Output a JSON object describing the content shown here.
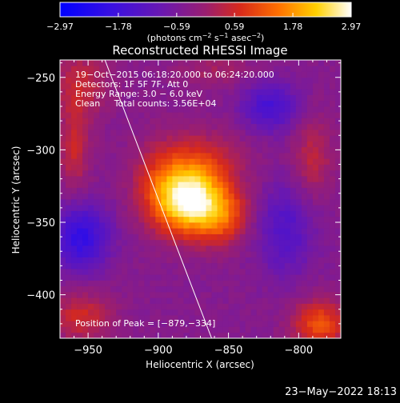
{
  "chart_data": {
    "type": "heatmap",
    "title": "Reconstructed RHESSI Image",
    "xlabel": "Heliocentric X (arcsec)",
    "ylabel": "Heliocentric Y (arcsec)",
    "xlim": [
      -970,
      -770
    ],
    "ylim": [
      -430,
      -238
    ],
    "xticks": [
      -950,
      -900,
      -850,
      -800
    ],
    "yticks": [
      -250,
      -300,
      -350,
      -400
    ],
    "xtick_labels": [
      "−950",
      "−900",
      "−850",
      "−800"
    ],
    "ytick_labels": [
      "−250",
      "−300",
      "−350",
      "−400"
    ],
    "colorbar": {
      "min": -2.97,
      "max": 2.97,
      "ticks": [
        -2.97,
        -1.78,
        -0.59,
        0.59,
        1.78,
        2.97
      ],
      "tick_labels": [
        "−2.97",
        "−1.78",
        "−0.59",
        "0.59",
        "1.78",
        "2.97"
      ],
      "units_label_prefix": "(photons cm",
      "units_label_exp1": "−2",
      "units_label_mid": " s",
      "units_label_exp2": "−1",
      "units_label_mid2": " asec",
      "units_label_exp3": "−2",
      "units_label_suffix": ")"
    },
    "annotations": {
      "time_range": "19−Oct−2015 06:18:20.000 to 06:24:20.000",
      "detectors": "Detectors: 1F 5F 7F, Att 0",
      "energy": "Energy Range: 3.0 − 6.0 keV",
      "clean": "Clean     Total counts: 3.56E+04",
      "peak": "Position of Peak = [−879,−334]"
    },
    "peak": {
      "x": -879,
      "y": -334
    },
    "limb_line": [
      [
        -938,
        -238
      ],
      [
        -862,
        -430
      ]
    ],
    "sources": [
      {
        "x": -879,
        "y": -335,
        "amp": 2.9,
        "sx": 16,
        "sy": 16
      },
      {
        "x": -855,
        "y": -345,
        "amp": 1.5,
        "sx": 14,
        "sy": 14
      },
      {
        "x": -870,
        "y": -310,
        "amp": 1.0,
        "sx": 22,
        "sy": 16
      },
      {
        "x": -900,
        "y": -325,
        "amp": 0.8,
        "sx": 14,
        "sy": 20
      },
      {
        "x": -955,
        "y": -360,
        "amp": -1.6,
        "sx": 14,
        "sy": 16
      },
      {
        "x": -820,
        "y": -270,
        "amp": -1.2,
        "sx": 14,
        "sy": 12
      },
      {
        "x": -810,
        "y": -355,
        "amp": -1.0,
        "sx": 14,
        "sy": 22
      },
      {
        "x": -955,
        "y": -255,
        "amp": 0.9,
        "sx": 14,
        "sy": 16
      },
      {
        "x": -960,
        "y": -300,
        "amp": 0.9,
        "sx": 8,
        "sy": 20
      },
      {
        "x": -790,
        "y": -305,
        "amp": 0.8,
        "sx": 10,
        "sy": 20
      },
      {
        "x": -785,
        "y": -420,
        "amp": 1.5,
        "sx": 14,
        "sy": 12
      },
      {
        "x": -955,
        "y": -415,
        "amp": 1.0,
        "sx": 16,
        "sy": 12
      },
      {
        "x": -860,
        "y": -245,
        "amp": 0.5,
        "sx": 20,
        "sy": 8
      }
    ],
    "background_level": -0.4
  },
  "footer": {
    "date": "23−May−2022 18:13"
  }
}
